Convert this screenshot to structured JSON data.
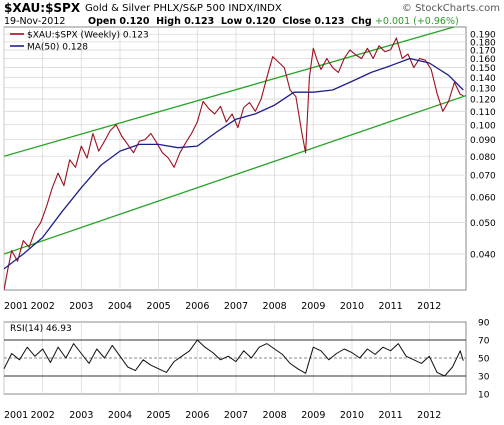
{
  "header": {
    "symbol": "$XAU:$SPX",
    "name": "Gold & Silver PHLX/S&P 500  INDX/INDX",
    "brand": "© StockCharts.com",
    "date": "19-Nov-2012",
    "open_label": "Open",
    "open": "0.120",
    "high_label": "High",
    "high": "0.123",
    "low_label": "Low",
    "low": "0.120",
    "close_label": "Close",
    "close": "0.123",
    "chg_label": "Chg",
    "chg": "+0.001 (+0.96%)"
  },
  "colors": {
    "price": "#9c0f1f",
    "ma": "#1f1f8c",
    "channel": "#26a426",
    "rsi": "#111111",
    "grid": "#d9d9d9"
  },
  "chart_data": [
    {
      "type": "line",
      "x_ticks": [
        "2001",
        "2002",
        "2003",
        "2004",
        "2005",
        "2006",
        "2007",
        "2008",
        "2009",
        "2010",
        "2011",
        "2012"
      ],
      "y_scale": "log",
      "ylim": [
        0.031,
        0.2
      ],
      "y_ticks": [
        "0.190",
        "0.180",
        "0.170",
        "0.160",
        "0.150",
        "0.140",
        "0.130",
        "0.120",
        "0.110",
        "0.100",
        "0.090",
        "0.080",
        "0.070",
        "0.060",
        "0.050",
        "0.040"
      ],
      "legend": [
        {
          "label": "$XAU:$SPX (Weekly) 0.123"
        },
        {
          "label": "MA(50) 0.128"
        }
      ],
      "series": [
        {
          "name": "$XAU:$SPX (Weekly)",
          "x": [
            2001.0,
            2001.1,
            2001.2,
            2001.35,
            2001.5,
            2001.65,
            2001.8,
            2001.95,
            2002.1,
            2002.25,
            2002.4,
            2002.55,
            2002.7,
            2002.85,
            2003.0,
            2003.15,
            2003.3,
            2003.45,
            2003.6,
            2003.75,
            2003.9,
            2004.05,
            2004.2,
            2004.35,
            2004.5,
            2004.65,
            2004.8,
            2004.95,
            2005.1,
            2005.25,
            2005.4,
            2005.55,
            2005.7,
            2005.85,
            2006.0,
            2006.15,
            2006.3,
            2006.45,
            2006.6,
            2006.75,
            2006.9,
            2007.05,
            2007.2,
            2007.35,
            2007.5,
            2007.65,
            2007.8,
            2007.95,
            2008.1,
            2008.25,
            2008.4,
            2008.55,
            2008.7,
            2008.8,
            2008.9,
            2009.0,
            2009.1,
            2009.2,
            2009.35,
            2009.5,
            2009.65,
            2009.8,
            2009.95,
            2010.1,
            2010.25,
            2010.4,
            2010.55,
            2010.7,
            2010.85,
            2011.0,
            2011.15,
            2011.3,
            2011.45,
            2011.6,
            2011.75,
            2011.9,
            2012.05,
            2012.2,
            2012.35,
            2012.5,
            2012.65,
            2012.8,
            2012.88
          ],
          "y": [
            0.031,
            0.036,
            0.041,
            0.038,
            0.044,
            0.042,
            0.047,
            0.05,
            0.056,
            0.064,
            0.071,
            0.065,
            0.078,
            0.074,
            0.086,
            0.079,
            0.094,
            0.083,
            0.089,
            0.096,
            0.1,
            0.092,
            0.087,
            0.082,
            0.089,
            0.09,
            0.094,
            0.088,
            0.082,
            0.079,
            0.074,
            0.082,
            0.088,
            0.094,
            0.102,
            0.118,
            0.112,
            0.108,
            0.114,
            0.102,
            0.108,
            0.098,
            0.113,
            0.117,
            0.11,
            0.12,
            0.14,
            0.162,
            0.156,
            0.15,
            0.128,
            0.122,
            0.095,
            0.082,
            0.14,
            0.172,
            0.158,
            0.148,
            0.16,
            0.15,
            0.145,
            0.16,
            0.17,
            0.164,
            0.16,
            0.172,
            0.16,
            0.175,
            0.168,
            0.17,
            0.185,
            0.16,
            0.165,
            0.15,
            0.16,
            0.158,
            0.148,
            0.125,
            0.11,
            0.118,
            0.135,
            0.124,
            0.123
          ]
        },
        {
          "name": "MA(50)",
          "x": [
            2001.0,
            2001.5,
            2002.0,
            2002.5,
            2003.0,
            2003.5,
            2004.0,
            2004.5,
            2005.0,
            2005.5,
            2006.0,
            2006.5,
            2007.0,
            2007.5,
            2008.0,
            2008.5,
            2009.0,
            2009.5,
            2010.0,
            2010.5,
            2011.0,
            2011.5,
            2012.0,
            2012.5,
            2012.88
          ],
          "y": [
            0.036,
            0.04,
            0.045,
            0.054,
            0.064,
            0.075,
            0.083,
            0.087,
            0.087,
            0.085,
            0.086,
            0.095,
            0.104,
            0.108,
            0.115,
            0.126,
            0.126,
            0.128,
            0.136,
            0.145,
            0.152,
            0.16,
            0.155,
            0.142,
            0.128
          ]
        },
        {
          "name": "Upper channel",
          "x": [
            2001.0,
            2012.95
          ],
          "y": [
            0.08,
            0.205
          ]
        },
        {
          "name": "Lower channel",
          "x": [
            2001.0,
            2012.95
          ],
          "y": [
            0.04,
            0.123
          ]
        }
      ]
    },
    {
      "type": "line",
      "legend": [
        {
          "label": "RSI(14) 46.93"
        }
      ],
      "ylim": [
        10,
        90
      ],
      "y_ticks": [
        "90",
        "70",
        "50",
        "30",
        "10"
      ],
      "reference_lines": [
        70,
        50,
        30
      ],
      "x_ticks": [
        "2001",
        "2002",
        "2003",
        "2004",
        "2005",
        "2006",
        "2007",
        "2008",
        "2009",
        "2010",
        "2011",
        "2012"
      ],
      "series": [
        {
          "name": "RSI(14)",
          "x": [
            2001.0,
            2001.2,
            2001.4,
            2001.6,
            2001.8,
            2002.0,
            2002.2,
            2002.4,
            2002.6,
            2002.8,
            2003.0,
            2003.2,
            2003.4,
            2003.6,
            2003.8,
            2004.0,
            2004.2,
            2004.4,
            2004.6,
            2004.8,
            2005.0,
            2005.2,
            2005.4,
            2005.6,
            2005.8,
            2006.0,
            2006.2,
            2006.4,
            2006.6,
            2006.8,
            2007.0,
            2007.2,
            2007.4,
            2007.6,
            2007.8,
            2008.0,
            2008.2,
            2008.4,
            2008.6,
            2008.8,
            2009.0,
            2009.2,
            2009.4,
            2009.6,
            2009.8,
            2010.0,
            2010.2,
            2010.4,
            2010.6,
            2010.8,
            2011.0,
            2011.2,
            2011.4,
            2011.6,
            2011.8,
            2012.0,
            2012.2,
            2012.4,
            2012.6,
            2012.8,
            2012.88
          ],
          "y": [
            38,
            55,
            48,
            62,
            52,
            60,
            45,
            62,
            50,
            66,
            55,
            44,
            60,
            50,
            64,
            52,
            40,
            36,
            48,
            42,
            38,
            34,
            46,
            52,
            58,
            70,
            62,
            56,
            48,
            52,
            46,
            58,
            50,
            62,
            66,
            60,
            54,
            44,
            38,
            33,
            62,
            58,
            48,
            55,
            60,
            56,
            50,
            60,
            54,
            62,
            58,
            66,
            52,
            48,
            44,
            52,
            34,
            30,
            40,
            58,
            47
          ]
        }
      ]
    }
  ]
}
